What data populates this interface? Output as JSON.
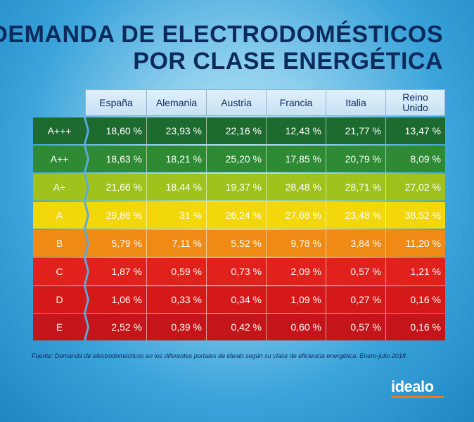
{
  "title": {
    "line1": "DEMANDA DE ELECTRODOMÉSTICOS",
    "line2": "POR CLASE ENERGÉTICA"
  },
  "source": "Fuente: Demanda de electrodomésticos en los diferentes portales de idealo según su clase de eficiencia energética. Enero-julio 2018.",
  "logo": "idealo",
  "colors": {
    "accent_orange": "#f07a1a",
    "title_navy": "#0d2a5c",
    "header_bg": "#cfe7f5",
    "zigzag": "#5aa8e0"
  },
  "chart_data": {
    "type": "table",
    "columns": [
      "España",
      "Alemania",
      "Austria",
      "Francia",
      "Italia",
      "Reino Unido"
    ],
    "rows": [
      {
        "label": "A+++",
        "values": [
          "18,60 %",
          "23,93 %",
          "22,16 %",
          "12,43 %",
          "21,77 %",
          "13,47 %"
        ],
        "color": "#1e6b2f",
        "text": "#ffffff"
      },
      {
        "label": "A++",
        "values": [
          "18,63 %",
          "18,21 %",
          "25,20 %",
          "17,85 %",
          "20,79 %",
          "8,09 %"
        ],
        "color": "#2f8a34",
        "text": "#ffffff"
      },
      {
        "label": "A+",
        "values": [
          "21,66 %",
          "18,44 %",
          "19,37 %",
          "28,48 %",
          "28,71 %",
          "27,02 %"
        ],
        "color": "#9fc31c",
        "text": "#ffffff"
      },
      {
        "label": "A",
        "values": [
          "29,86 %",
          "31 %",
          "26,24 %",
          "27,68 %",
          "23,48 %",
          "38,52 %"
        ],
        "color": "#f2d80a",
        "text": "#ffffff"
      },
      {
        "label": "B",
        "values": [
          "5,79 %",
          "7,11 %",
          "5,52 %",
          "9,78 %",
          "3,84 %",
          "11,20 %"
        ],
        "color": "#ef8a14",
        "text": "#ffffff"
      },
      {
        "label": "C",
        "values": [
          "1,87 %",
          "0,59 %",
          "0,73 %",
          "2,09 %",
          "0,57 %",
          "1,21 %"
        ],
        "color": "#e0211c",
        "text": "#ffffff"
      },
      {
        "label": "D",
        "values": [
          "1,06 %",
          "0,33 %",
          "0,34 %",
          "1,09 %",
          "0,27 %",
          "0,16 %"
        ],
        "color": "#d41918",
        "text": "#ffffff"
      },
      {
        "label": "E",
        "values": [
          "2,52 %",
          "0,39 %",
          "0,42 %",
          "0,60 %",
          "0,57 %",
          "0,16 %"
        ],
        "color": "#c4161a",
        "text": "#ffffff"
      }
    ]
  }
}
